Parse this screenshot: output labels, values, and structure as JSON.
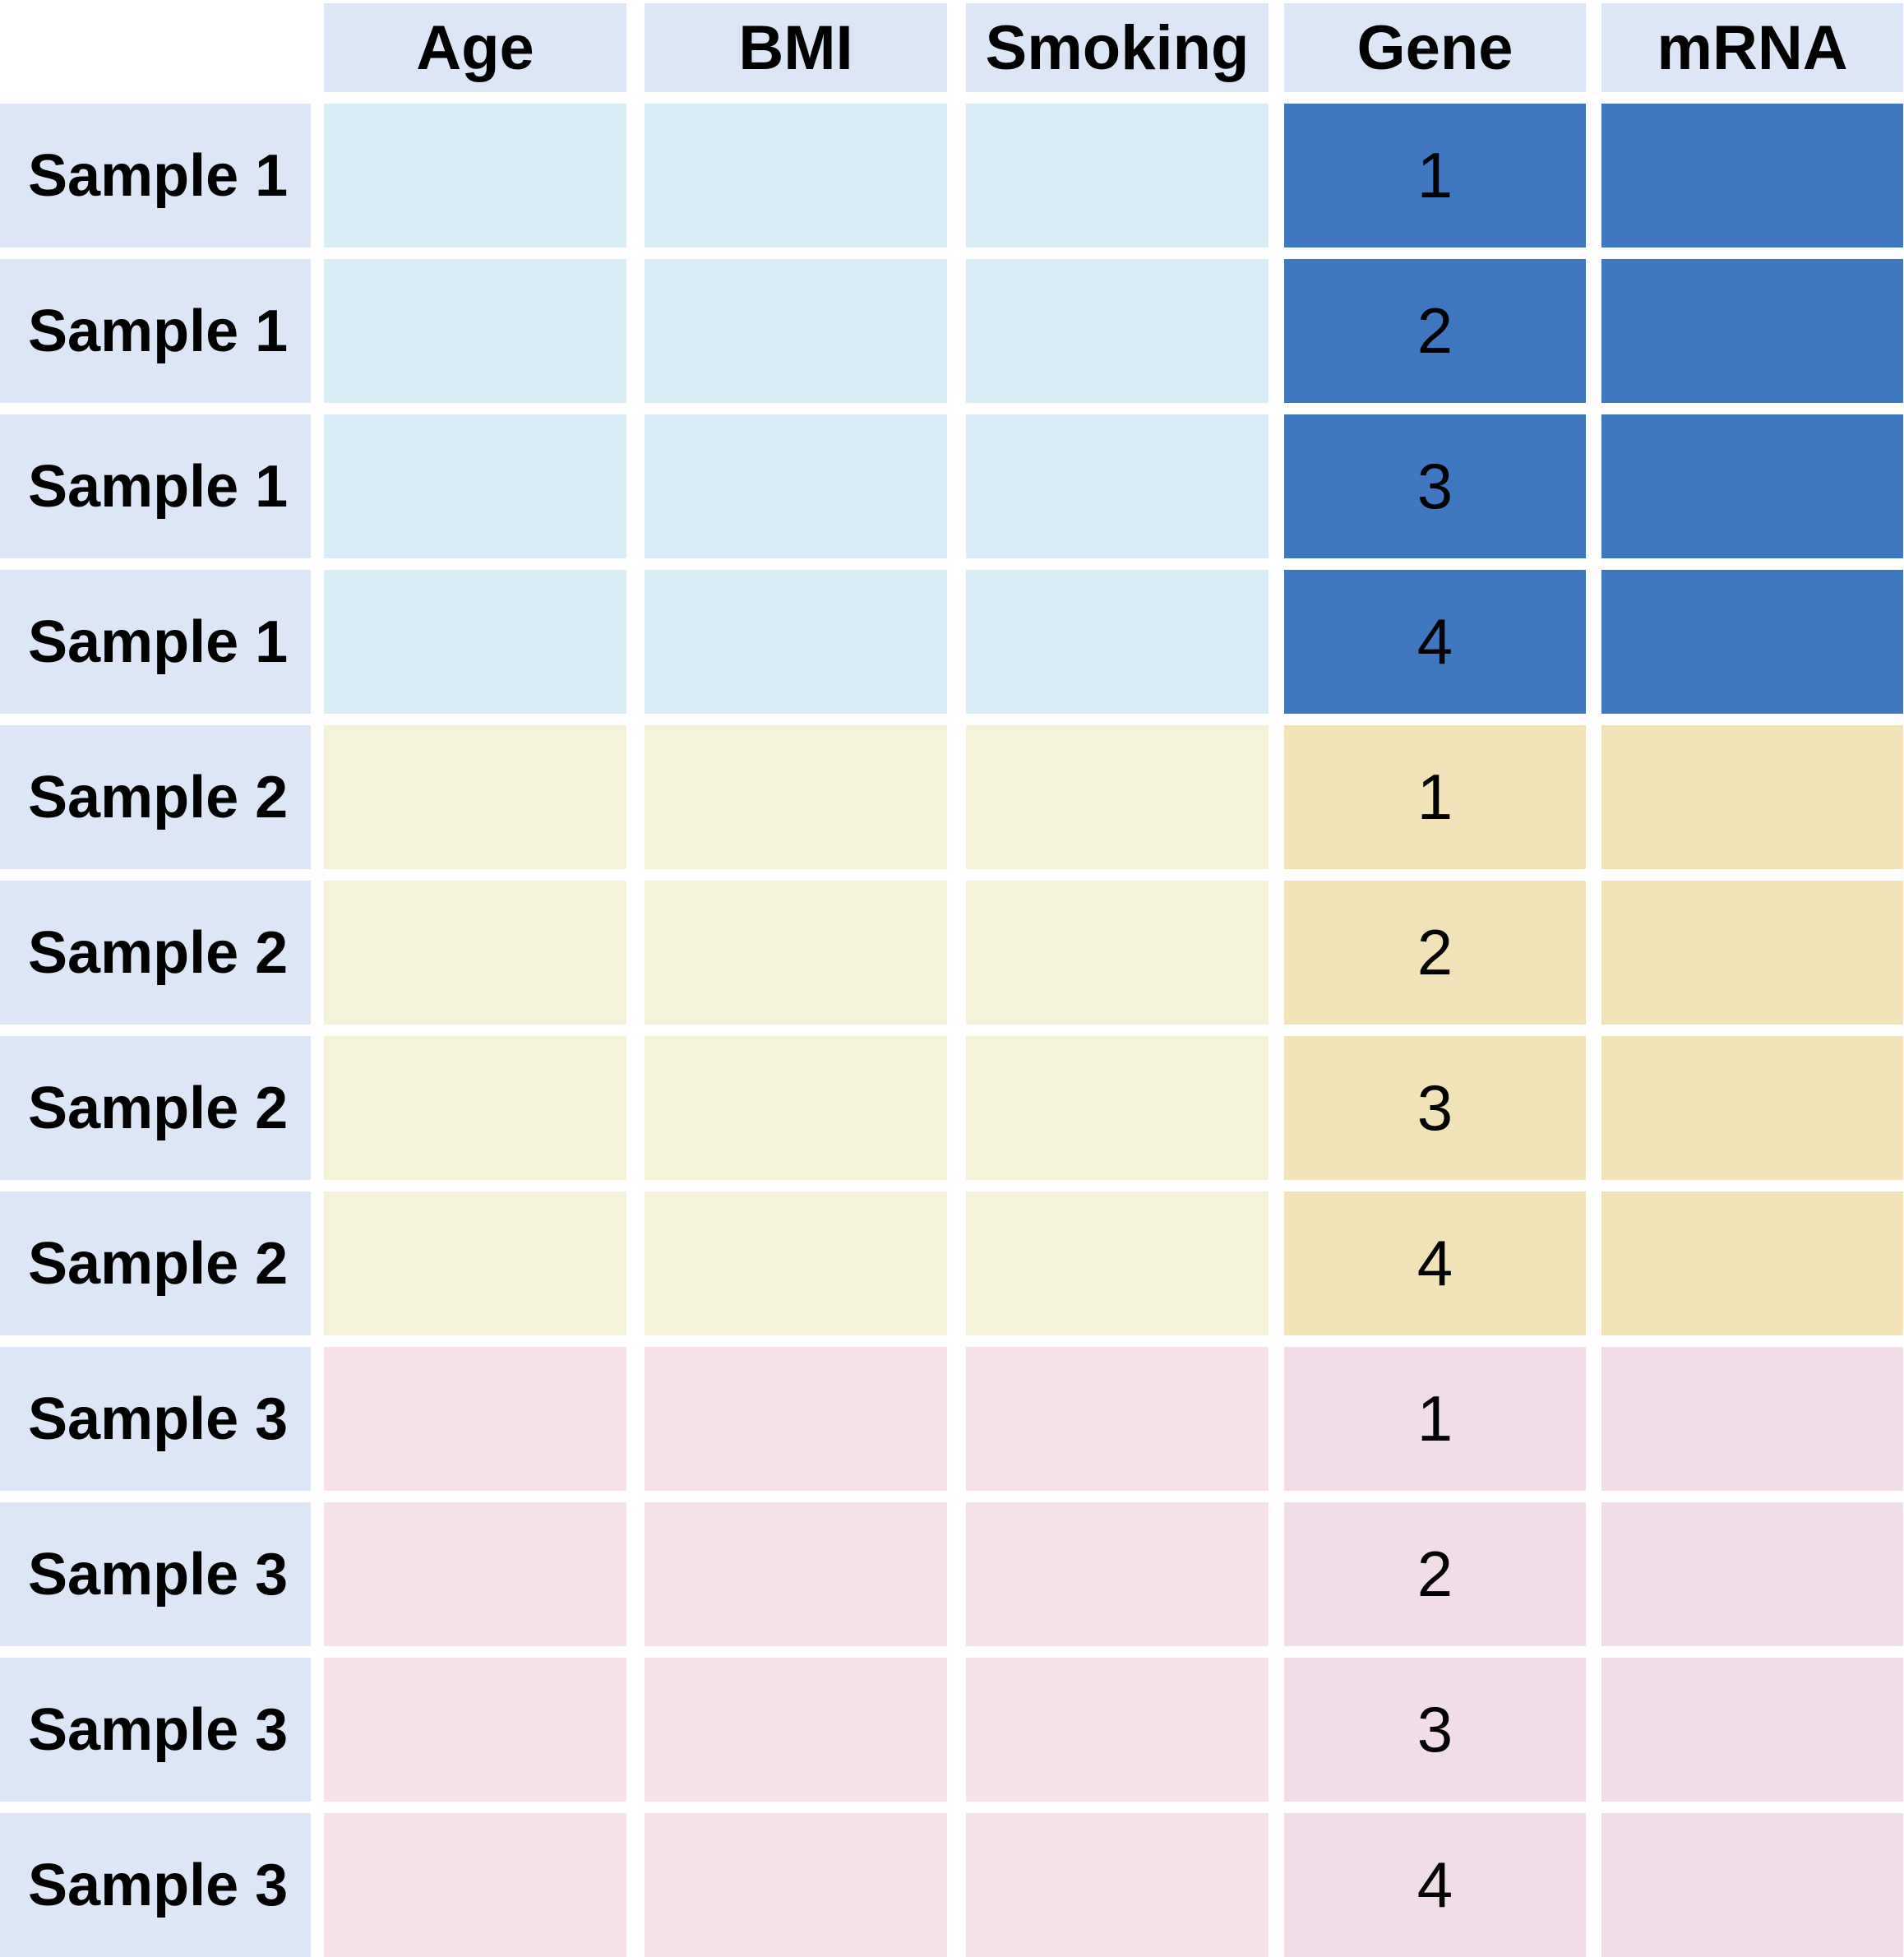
{
  "colors": {
    "header_bg": "#dde6f6",
    "group1_light": "#d8edf5",
    "group1_dark": "#3f78c1",
    "group2_light": "#f4f2d7",
    "group2_dark": "#f1e2b7",
    "group3_light": "#f8e2e9",
    "group3_dark": "#f1dde7"
  },
  "headers": [
    "Age",
    "BMI",
    "Smoking",
    "Gene",
    "mRNA"
  ],
  "rows": [
    {
      "sample": "Sample 1",
      "gene": "1",
      "group": 1
    },
    {
      "sample": "Sample 1",
      "gene": "2",
      "group": 1
    },
    {
      "sample": "Sample 1",
      "gene": "3",
      "group": 1
    },
    {
      "sample": "Sample 1",
      "gene": "4",
      "group": 1
    },
    {
      "sample": "Sample 2",
      "gene": "1",
      "group": 2
    },
    {
      "sample": "Sample 2",
      "gene": "2",
      "group": 2
    },
    {
      "sample": "Sample 2",
      "gene": "3",
      "group": 2
    },
    {
      "sample": "Sample 2",
      "gene": "4",
      "group": 2
    },
    {
      "sample": "Sample 3",
      "gene": "1",
      "group": 3
    },
    {
      "sample": "Sample 3",
      "gene": "2",
      "group": 3
    },
    {
      "sample": "Sample 3",
      "gene": "3",
      "group": 3
    },
    {
      "sample": "Sample 3",
      "gene": "4",
      "group": 3
    }
  ]
}
